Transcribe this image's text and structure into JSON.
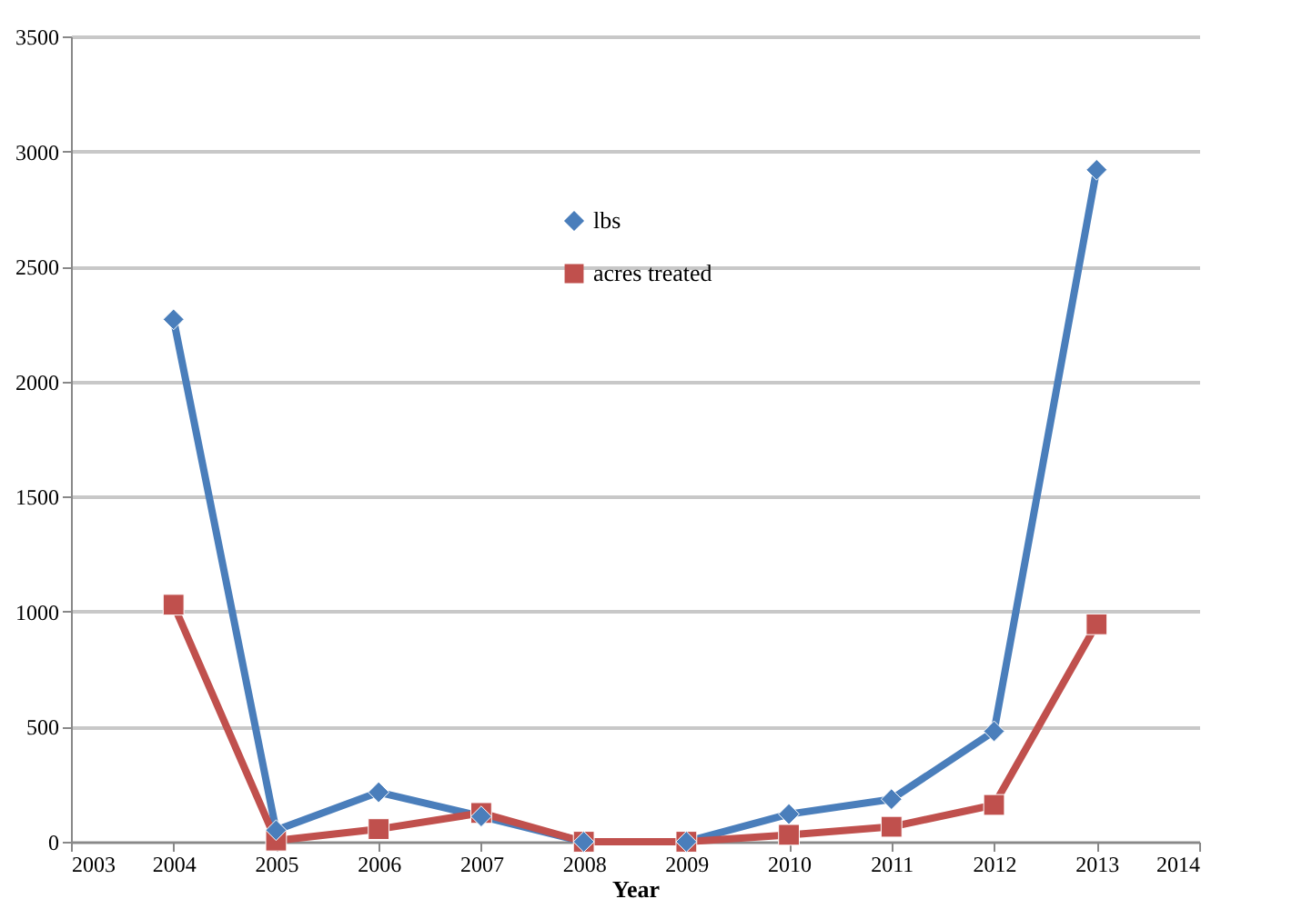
{
  "chart_data": {
    "type": "line",
    "xlabel": "Year",
    "x": [
      2004,
      2005,
      2006,
      2007,
      2008,
      2009,
      2010,
      2011,
      2012,
      2013
    ],
    "series": [
      {
        "name": "lbs",
        "color": "#4a7ebb",
        "marker": "diamond",
        "values": [
          2270,
          50,
          215,
          110,
          0,
          0,
          120,
          185,
          480,
          2920
        ]
      },
      {
        "name": "acres treated",
        "color": "#c0504d",
        "marker": "square",
        "values": [
          1030,
          5,
          55,
          125,
          0,
          0,
          30,
          65,
          160,
          945
        ]
      }
    ],
    "xlim": [
      2003,
      2014
    ],
    "xticks": [
      2003,
      2004,
      2005,
      2006,
      2007,
      2008,
      2009,
      2010,
      2011,
      2012,
      2013,
      2014
    ],
    "ylim": [
      0,
      3500
    ],
    "yticks": [
      0,
      500,
      1000,
      1500,
      2000,
      2500,
      3000,
      3500
    ],
    "grid": "y",
    "legend": "top"
  }
}
